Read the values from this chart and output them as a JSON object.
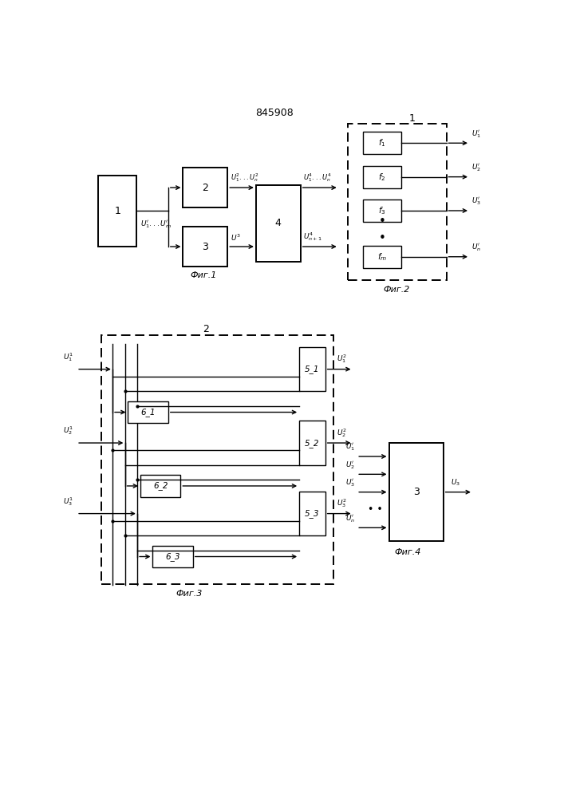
{
  "title": "845908",
  "bg_color": "#ffffff",
  "fig1_caption": "Фиг.1",
  "fig2_caption": "Фиг.2",
  "fig3_caption": "Фиг.3",
  "fig4_caption": "Фиг.4",
  "lw": 1.0,
  "lw_thick": 1.4
}
